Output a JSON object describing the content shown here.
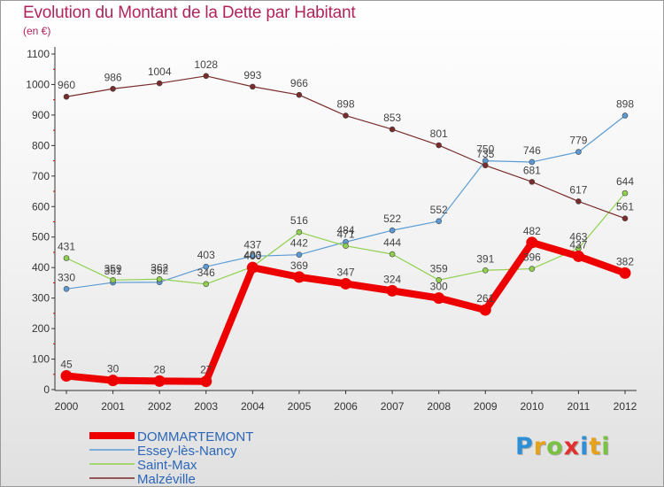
{
  "title": "Evolution du Montant de la Dette par Habitant",
  "subtitle": "(en €)",
  "logo": {
    "letters": [
      {
        "ch": "P",
        "color": "#2f8fd6"
      },
      {
        "ch": "r",
        "color": "#e8a21a"
      },
      {
        "ch": "o",
        "color": "#7cc242"
      },
      {
        "ch": "x",
        "color": "#e2302f"
      },
      {
        "ch": "i",
        "color": "#2f8fd6"
      },
      {
        "ch": "t",
        "color": "#e8a21a"
      },
      {
        "ch": "i",
        "color": "#7cc242"
      }
    ]
  },
  "chart_data": {
    "type": "line",
    "title": "Evolution du Montant de la Dette par Habitant",
    "ylabel": "(en €)",
    "xlabel": "",
    "x": [
      "2000",
      "2001",
      "2002",
      "2003",
      "2004",
      "2005",
      "2006",
      "2007",
      "2008",
      "2009",
      "2010",
      "2011",
      "2012"
    ],
    "ylim": [
      0,
      1100
    ],
    "yticks": [
      0,
      100,
      200,
      300,
      400,
      500,
      600,
      700,
      800,
      900,
      1000,
      1100
    ],
    "grid": false,
    "legend_position": "bottom-left",
    "series": [
      {
        "name": "DOMMARTEMONT",
        "color": "#ee0000",
        "emphasis": true,
        "values": [
          45,
          30,
          28,
          27,
          400,
          369,
          347,
          324,
          300,
          261,
          482,
          437,
          382
        ],
        "labels": [
          "45",
          "30",
          "28",
          "27",
          "400",
          "369",
          "347",
          "324",
          "300",
          "261",
          "482",
          "437",
          "382"
        ]
      },
      {
        "name": "Essey-lès-Nancy",
        "color": "#5b9bd5",
        "values": [
          330,
          351,
          352,
          403,
          437,
          442,
          484,
          522,
          552,
          750,
          746,
          779,
          898
        ],
        "labels": [
          "330",
          "351",
          "352",
          "403",
          "437",
          "442",
          "484",
          "522",
          "552",
          "750",
          "746",
          "779",
          "898"
        ]
      },
      {
        "name": "Saint-Max",
        "color": "#8fd14f",
        "values": [
          431,
          359,
          362,
          346,
          403,
          516,
          471,
          444,
          359,
          391,
          396,
          463,
          644
        ],
        "labels": [
          "431",
          "359",
          "362",
          "346",
          "403",
          "516",
          "471",
          "444",
          "359",
          "391",
          "396",
          "463",
          "644"
        ]
      },
      {
        "name": "Malzéville",
        "color": "#7a2b2b",
        "values": [
          960,
          986,
          1004,
          1028,
          993,
          966,
          898,
          853,
          801,
          735,
          681,
          617,
          561
        ],
        "labels": [
          "960",
          "986",
          "1004",
          "1028",
          "993",
          "966",
          "898",
          "853",
          "801",
          "735",
          "681",
          "617",
          "561"
        ]
      }
    ]
  }
}
